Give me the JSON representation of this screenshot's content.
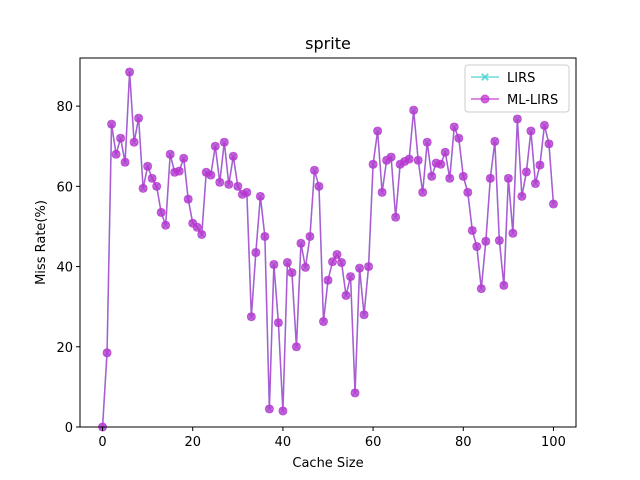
{
  "chart_data": {
    "type": "line",
    "title": "sprite",
    "xlabel": "Cache Size",
    "ylabel": "Miss Rate(%)",
    "xlim": [
      -5,
      105
    ],
    "ylim": [
      0,
      92
    ],
    "xticks": [
      0,
      20,
      40,
      60,
      80,
      100
    ],
    "yticks": [
      0,
      20,
      40,
      60,
      80
    ],
    "legend_position": "top-right",
    "series": [
      {
        "name": "LIRS",
        "color": "#40d0d0",
        "marker": "x",
        "x": [
          0,
          1,
          2,
          3,
          4,
          5,
          6,
          7,
          8,
          9,
          10,
          11,
          12,
          13,
          14,
          15,
          16,
          17,
          18,
          19,
          20,
          21,
          22,
          23,
          24,
          25,
          26,
          27,
          28,
          29,
          30,
          31,
          32,
          33,
          34,
          35,
          36,
          37,
          38,
          39,
          40,
          41,
          42,
          43,
          44,
          45,
          46,
          47,
          48,
          49,
          50,
          51,
          52,
          53,
          54,
          55,
          56,
          57,
          58,
          59,
          60,
          61,
          62,
          63,
          64,
          65,
          66,
          67,
          68,
          69,
          70,
          71,
          72,
          73,
          74,
          75,
          76,
          77,
          78,
          79,
          80,
          81,
          82,
          83,
          84,
          85,
          86,
          87,
          88,
          89,
          90,
          91,
          92,
          93,
          94,
          95,
          96,
          97,
          98,
          99,
          100
        ],
        "y": [
          0,
          18.5,
          75.5,
          68,
          72,
          66,
          88.5,
          71,
          77,
          59.5,
          65,
          62,
          60,
          53.5,
          50.3,
          68,
          63.5,
          63.8,
          67,
          56.8,
          50.8,
          49.8,
          48,
          63.5,
          62.8,
          70,
          61,
          71,
          60.5,
          67.5,
          60,
          58,
          58.5,
          27.5,
          43.5,
          57.5,
          47.5,
          4.5,
          40.5,
          26,
          4,
          41,
          38.5,
          20,
          45.8,
          39.8,
          47.5,
          64,
          60,
          26.3,
          36.6,
          41.2,
          43,
          41,
          32.8,
          37.5,
          8.5,
          39.6,
          28,
          40,
          65.5,
          73.8,
          58.5,
          66.5,
          67.3,
          52.3,
          65.5,
          66.2,
          66.8,
          79,
          66.5,
          58.5,
          71,
          62.5,
          65.8,
          65.5,
          68.5,
          62,
          74.8,
          72,
          62.5,
          58.5,
          49,
          45,
          34.5,
          46.3,
          62,
          71.2,
          46.5,
          35.3,
          62,
          48.3,
          76.8,
          57.5,
          63.6,
          73.8,
          60.7,
          65.3,
          75.2,
          70.6,
          55.6
        ]
      },
      {
        "name": "ML-LIRS",
        "color": "#c030d0",
        "marker": "o",
        "x": [
          0,
          1,
          2,
          3,
          4,
          5,
          6,
          7,
          8,
          9,
          10,
          11,
          12,
          13,
          14,
          15,
          16,
          17,
          18,
          19,
          20,
          21,
          22,
          23,
          24,
          25,
          26,
          27,
          28,
          29,
          30,
          31,
          32,
          33,
          34,
          35,
          36,
          37,
          38,
          39,
          40,
          41,
          42,
          43,
          44,
          45,
          46,
          47,
          48,
          49,
          50,
          51,
          52,
          53,
          54,
          55,
          56,
          57,
          58,
          59,
          60,
          61,
          62,
          63,
          64,
          65,
          66,
          67,
          68,
          69,
          70,
          71,
          72,
          73,
          74,
          75,
          76,
          77,
          78,
          79,
          80,
          81,
          82,
          83,
          84,
          85,
          86,
          87,
          88,
          89,
          90,
          91,
          92,
          93,
          94,
          95,
          96,
          97,
          98,
          99,
          100
        ],
        "y": [
          0,
          18.5,
          75.5,
          68,
          72,
          66,
          88.5,
          71,
          77,
          59.5,
          65,
          62,
          60,
          53.5,
          50.3,
          68,
          63.5,
          63.8,
          67,
          56.8,
          50.8,
          49.8,
          48,
          63.5,
          62.8,
          70,
          61,
          71,
          60.5,
          67.5,
          60,
          58,
          58.5,
          27.5,
          43.5,
          57.5,
          47.5,
          4.5,
          40.5,
          26,
          4,
          41,
          38.5,
          20,
          45.8,
          39.8,
          47.5,
          64,
          60,
          26.3,
          36.6,
          41.2,
          43,
          41,
          32.8,
          37.5,
          8.5,
          39.6,
          28,
          40,
          65.5,
          73.8,
          58.5,
          66.5,
          67.3,
          52.3,
          65.5,
          66.2,
          66.8,
          79,
          66.5,
          58.5,
          71,
          62.5,
          65.8,
          65.5,
          68.5,
          62,
          74.8,
          72,
          62.5,
          58.5,
          49,
          45,
          34.5,
          46.3,
          62,
          71.2,
          46.5,
          35.3,
          62,
          48.3,
          76.8,
          57.5,
          63.6,
          73.8,
          60.7,
          65.3,
          75.2,
          70.6,
          55.6
        ]
      }
    ]
  }
}
